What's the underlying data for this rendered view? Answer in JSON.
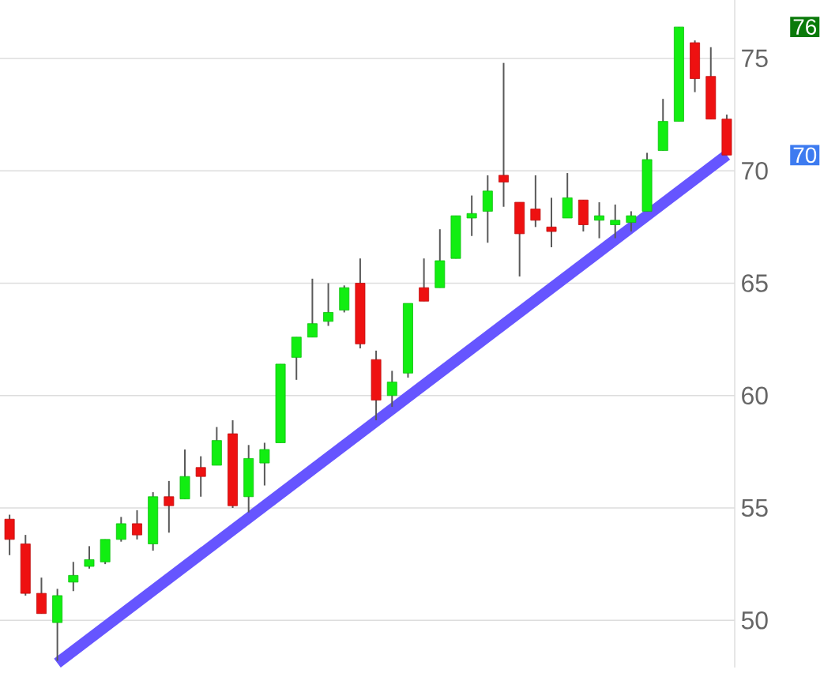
{
  "chart_data": {
    "type": "candlestick",
    "categories": [
      null,
      null,
      null,
      null,
      null,
      null,
      null,
      null,
      null,
      null,
      null,
      null,
      null,
      null,
      null,
      null,
      null,
      null,
      null,
      null,
      null,
      null,
      null,
      null,
      null,
      null,
      null,
      null,
      null,
      null,
      null,
      null,
      null,
      null,
      null,
      null,
      null,
      null,
      null,
      null,
      null,
      null,
      null,
      null,
      null,
      null
    ],
    "ohlc": [
      [
        54.5,
        54.7,
        52.9,
        53.6
      ],
      [
        53.4,
        53.8,
        51.1,
        51.2
      ],
      [
        51.2,
        51.9,
        50.3,
        50.3
      ],
      [
        49.9,
        51.4,
        48.2,
        51.1
      ],
      [
        51.7,
        52.6,
        51.3,
        52.0
      ],
      [
        52.4,
        53.3,
        52.3,
        52.7
      ],
      [
        52.6,
        53.6,
        52.5,
        53.6
      ],
      [
        53.6,
        54.6,
        53.5,
        54.3
      ],
      [
        54.3,
        54.9,
        53.6,
        53.8
      ],
      [
        53.4,
        55.7,
        53.1,
        55.5
      ],
      [
        55.5,
        56.2,
        53.9,
        55.1
      ],
      [
        55.4,
        57.6,
        55.4,
        56.4
      ],
      [
        56.8,
        57.3,
        55.5,
        56.4
      ],
      [
        56.9,
        58.6,
        56.9,
        58.0
      ],
      [
        58.3,
        58.9,
        55.0,
        55.1
      ],
      [
        55.5,
        57.8,
        54.8,
        57.2
      ],
      [
        57.0,
        57.9,
        56.0,
        57.6
      ],
      [
        57.9,
        61.4,
        57.9,
        61.4
      ],
      [
        61.7,
        62.6,
        60.7,
        62.6
      ],
      [
        62.6,
        65.2,
        62.6,
        63.2
      ],
      [
        63.3,
        65.0,
        63.1,
        63.7
      ],
      [
        63.8,
        64.9,
        63.7,
        64.8
      ],
      [
        65.0,
        66.1,
        62.1,
        62.3
      ],
      [
        61.6,
        62.0,
        58.9,
        59.8
      ],
      [
        60.0,
        61.1,
        59.5,
        60.6
      ],
      [
        61.0,
        64.1,
        60.8,
        64.1
      ],
      [
        64.8,
        66.1,
        64.2,
        64.2
      ],
      [
        64.8,
        67.4,
        64.8,
        66.0
      ],
      [
        66.1,
        68.0,
        66.1,
        68.0
      ],
      [
        67.9,
        68.9,
        67.1,
        68.1
      ],
      [
        68.2,
        69.8,
        66.8,
        69.1
      ],
      [
        69.8,
        74.8,
        68.4,
        69.5
      ],
      [
        68.6,
        68.6,
        65.3,
        67.2
      ],
      [
        68.3,
        69.8,
        67.5,
        67.8
      ],
      [
        67.5,
        68.8,
        66.6,
        67.3
      ],
      [
        67.9,
        69.9,
        67.9,
        68.8
      ],
      [
        68.7,
        68.7,
        67.3,
        67.6
      ],
      [
        67.8,
        68.6,
        67.0,
        68.0
      ],
      [
        67.6,
        68.5,
        67.0,
        67.8
      ],
      [
        67.7,
        68.2,
        67.3,
        68.0
      ],
      [
        68.2,
        70.8,
        68.2,
        70.5
      ],
      [
        70.9,
        73.2,
        70.9,
        72.2
      ],
      [
        72.2,
        76.4,
        72.2,
        76.4
      ],
      [
        75.7,
        75.8,
        73.5,
        74.1
      ],
      [
        74.2,
        75.5,
        72.3,
        72.3
      ],
      [
        72.3,
        72.5,
        70.7,
        70.7
      ]
    ],
    "series": [
      {
        "type": "line",
        "color": "#6655ff",
        "values": [
          null,
          null,
          null,
          48.1,
          null,
          null,
          null,
          null,
          null,
          null,
          null,
          null,
          null,
          null,
          null,
          null,
          null,
          null,
          null,
          null,
          null,
          null,
          null,
          null,
          null,
          null,
          null,
          null,
          null,
          null,
          null,
          null,
          null,
          null,
          null,
          null,
          null,
          null,
          null,
          null,
          null,
          null,
          null,
          null,
          null,
          70.7
        ]
      }
    ],
    "ylim": [
      47.9,
      77.6
    ],
    "yticks": [
      50,
      55,
      60,
      65,
      70,
      75
    ],
    "grid": "y",
    "annotations": [
      "76",
      "70"
    ]
  }
}
